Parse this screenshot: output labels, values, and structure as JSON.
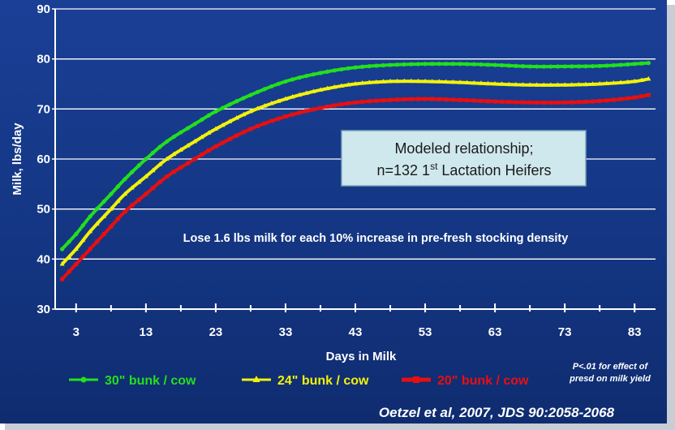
{
  "chart_data": {
    "type": "line",
    "title": "",
    "xlabel": "Days in Milk",
    "ylabel": "Milk, lbs/day",
    "xlim": [
      0,
      86
    ],
    "ylim": [
      30,
      90
    ],
    "x_ticks": [
      3,
      13,
      23,
      33,
      43,
      53,
      63,
      73,
      83
    ],
    "y_ticks": [
      30,
      40,
      50,
      60,
      70,
      80,
      90
    ],
    "grid": true,
    "legend_position": "bottom",
    "series": [
      {
        "name": "30\" bunk / cow",
        "color": "#22e01c",
        "marker": "circle",
        "points": [
          [
            1,
            42
          ],
          [
            3,
            45
          ],
          [
            5,
            48.5
          ],
          [
            8,
            53
          ],
          [
            10,
            56
          ],
          [
            13,
            60
          ],
          [
            16,
            63.5
          ],
          [
            20,
            67
          ],
          [
            23,
            69.5
          ],
          [
            28,
            72.8
          ],
          [
            33,
            75.5
          ],
          [
            38,
            77.2
          ],
          [
            43,
            78.3
          ],
          [
            48,
            78.8
          ],
          [
            53,
            79
          ],
          [
            58,
            79
          ],
          [
            63,
            78.8
          ],
          [
            68,
            78.5
          ],
          [
            73,
            78.5
          ],
          [
            78,
            78.6
          ],
          [
            83,
            79
          ],
          [
            85,
            79.2
          ]
        ]
      },
      {
        "name": "24\" bunk / cow",
        "color": "#f2f20a",
        "marker": "triangle",
        "points": [
          [
            1,
            39
          ],
          [
            3,
            42
          ],
          [
            5,
            45.5
          ],
          [
            8,
            50
          ],
          [
            10,
            53
          ],
          [
            13,
            56.5
          ],
          [
            16,
            60
          ],
          [
            20,
            63.5
          ],
          [
            23,
            66
          ],
          [
            28,
            69.5
          ],
          [
            33,
            72
          ],
          [
            38,
            73.8
          ],
          [
            43,
            75
          ],
          [
            48,
            75.5
          ],
          [
            53,
            75.5
          ],
          [
            58,
            75.3
          ],
          [
            63,
            75
          ],
          [
            68,
            74.8
          ],
          [
            73,
            74.8
          ],
          [
            78,
            75
          ],
          [
            83,
            75.5
          ],
          [
            85,
            76
          ]
        ]
      },
      {
        "name": "20\" bunk / cow",
        "color": "#e80f0f",
        "marker": "square",
        "points": [
          [
            1,
            36
          ],
          [
            3,
            39
          ],
          [
            5,
            42
          ],
          [
            8,
            46.5
          ],
          [
            10,
            49.5
          ],
          [
            13,
            53
          ],
          [
            16,
            56.5
          ],
          [
            20,
            60
          ],
          [
            23,
            62.5
          ],
          [
            28,
            66
          ],
          [
            33,
            68.5
          ],
          [
            38,
            70.2
          ],
          [
            43,
            71.3
          ],
          [
            48,
            71.8
          ],
          [
            53,
            72
          ],
          [
            58,
            71.8
          ],
          [
            63,
            71.5
          ],
          [
            68,
            71.3
          ],
          [
            73,
            71.3
          ],
          [
            78,
            71.6
          ],
          [
            83,
            72.3
          ],
          [
            85,
            72.8
          ]
        ]
      }
    ],
    "annotations": {
      "box_line1": "Modeled relationship;",
      "box_line2_pre": "n=132 1",
      "box_line2_sup": "st",
      "box_line2_post": " Lactation Heifers",
      "note": "Lose 1.6 lbs milk for each 10% increase in pre-fresh stocking density",
      "pvalue_line1": "P<.01 for effect of",
      "pvalue_line2": "presd on milk yield",
      "citation": "Oetzel et al, 2007, JDS 90:2058-2068"
    }
  },
  "colors": {
    "background": "#143683",
    "grid": "#ffffff",
    "box_fill": "#cfe8ee"
  }
}
